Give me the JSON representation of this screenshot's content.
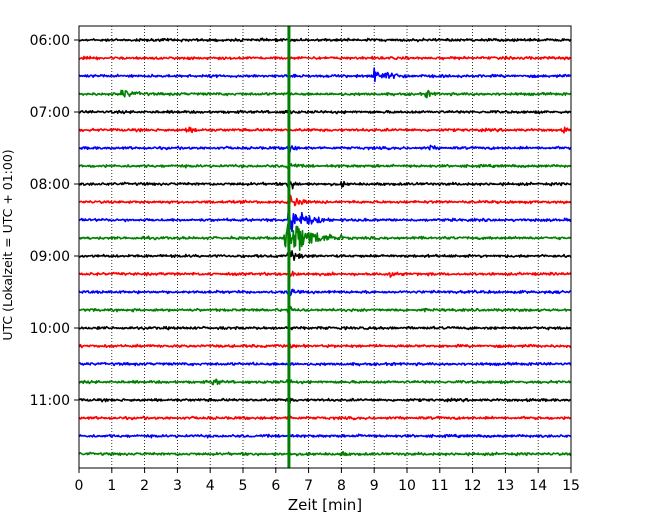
{
  "chart_data": {
    "type": "line",
    "title": "",
    "xlabel": "Zeit  [min]",
    "ylabel": "UTC (Lokalzeit = UTC + 01:00)",
    "xlim": [
      0,
      15
    ],
    "x_ticks": [
      0,
      1,
      2,
      3,
      4,
      5,
      6,
      7,
      8,
      9,
      10,
      11,
      12,
      13,
      14,
      15
    ],
    "grid": true,
    "trace_interval_minutes": 15,
    "first_trace_time": "06:00",
    "y_tick_labels": [
      "06:00",
      "07:00",
      "08:00",
      "09:00",
      "10:00",
      "11:00"
    ],
    "trace_colors": [
      "#000000",
      "#ff0000",
      "#0000ff",
      "#008000"
    ],
    "series": [
      {
        "name": "06:00",
        "color": "#000000",
        "events": []
      },
      {
        "name": "06:15",
        "color": "#ff0000",
        "events": []
      },
      {
        "name": "06:30",
        "color": "#0000ff",
        "events": [
          {
            "t": 9.0,
            "amplitude": 1.6,
            "duration": 1.2
          }
        ]
      },
      {
        "name": "06:45",
        "color": "#008000",
        "events": [
          {
            "t": 1.3,
            "amplitude": 1.0,
            "duration": 0.8
          },
          {
            "t": 10.6,
            "amplitude": 0.7,
            "duration": 0.4
          }
        ]
      },
      {
        "name": "07:00",
        "color": "#000000",
        "events": [
          {
            "t": 6.35,
            "amplitude": 0.8,
            "duration": 0.2
          }
        ]
      },
      {
        "name": "07:15",
        "color": "#ff0000",
        "events": [
          {
            "t": 3.3,
            "amplitude": 0.6,
            "duration": 0.6
          },
          {
            "t": 14.8,
            "amplitude": 0.6,
            "duration": 0.2
          }
        ]
      },
      {
        "name": "07:30",
        "color": "#0000ff",
        "events": [
          {
            "t": 6.4,
            "amplitude": 1.3,
            "duration": 0.3
          },
          {
            "t": 10.7,
            "amplitude": 0.6,
            "duration": 0.3
          }
        ]
      },
      {
        "name": "07:45",
        "color": "#008000",
        "events": [
          {
            "t": 6.4,
            "amplitude": 1.4,
            "duration": 0.3
          }
        ]
      },
      {
        "name": "08:00",
        "color": "#000000",
        "events": [
          {
            "t": 6.4,
            "amplitude": 1.6,
            "duration": 0.4
          },
          {
            "t": 8.0,
            "amplitude": 0.5,
            "duration": 0.3
          }
        ]
      },
      {
        "name": "08:15",
        "color": "#ff0000",
        "events": [
          {
            "t": 6.4,
            "amplitude": 2.5,
            "duration": 0.6
          }
        ]
      },
      {
        "name": "08:30",
        "color": "#0000ff",
        "events": [
          {
            "t": 6.4,
            "amplitude": 3.5,
            "duration": 1.3
          }
        ]
      },
      {
        "name": "08:45",
        "color": "#008000",
        "events": [
          {
            "t": 6.3,
            "amplitude": 5.5,
            "duration": 1.8
          }
        ]
      },
      {
        "name": "09:00",
        "color": "#000000",
        "events": [
          {
            "t": 6.4,
            "amplitude": 1.6,
            "duration": 0.6
          }
        ]
      },
      {
        "name": "09:15",
        "color": "#ff0000",
        "events": [
          {
            "t": 6.4,
            "amplitude": 1.4,
            "duration": 0.4
          },
          {
            "t": 9.5,
            "amplitude": 0.6,
            "duration": 0.3
          }
        ]
      },
      {
        "name": "09:30",
        "color": "#0000ff",
        "events": [
          {
            "t": 6.4,
            "amplitude": 1.2,
            "duration": 0.3
          }
        ]
      },
      {
        "name": "09:45",
        "color": "#008000",
        "events": [
          {
            "t": 6.4,
            "amplitude": 1.2,
            "duration": 0.3
          }
        ]
      },
      {
        "name": "10:00",
        "color": "#000000",
        "events": [
          {
            "t": 6.4,
            "amplitude": 0.9,
            "duration": 0.2
          }
        ]
      },
      {
        "name": "10:15",
        "color": "#ff0000",
        "events": [
          {
            "t": 6.4,
            "amplitude": 0.8,
            "duration": 0.2
          }
        ]
      },
      {
        "name": "10:30",
        "color": "#0000ff",
        "events": [
          {
            "t": 6.4,
            "amplitude": 0.8,
            "duration": 0.2
          }
        ]
      },
      {
        "name": "10:45",
        "color": "#008000",
        "events": [
          {
            "t": 4.1,
            "amplitude": 1.0,
            "duration": 0.4
          },
          {
            "t": 6.4,
            "amplitude": 0.8,
            "duration": 0.2
          }
        ]
      },
      {
        "name": "11:00",
        "color": "#000000",
        "events": [
          {
            "t": 6.4,
            "amplitude": 0.8,
            "duration": 0.2
          }
        ]
      },
      {
        "name": "11:15",
        "color": "#ff0000",
        "events": [
          {
            "t": 6.4,
            "amplitude": 0.7,
            "duration": 0.2
          }
        ]
      },
      {
        "name": "11:30",
        "color": "#0000ff",
        "events": [
          {
            "t": 6.4,
            "amplitude": 0.6,
            "duration": 0.2
          },
          {
            "t": 8.6,
            "amplitude": 0.5,
            "duration": 0.3
          }
        ]
      },
      {
        "name": "11:45",
        "color": "#008000",
        "events": [
          {
            "t": 8.0,
            "amplitude": 0.5,
            "duration": 0.3
          }
        ]
      }
    ],
    "annotations": [
      {
        "type": "vertical-line",
        "x": 6.4,
        "color": "#008000"
      }
    ]
  }
}
